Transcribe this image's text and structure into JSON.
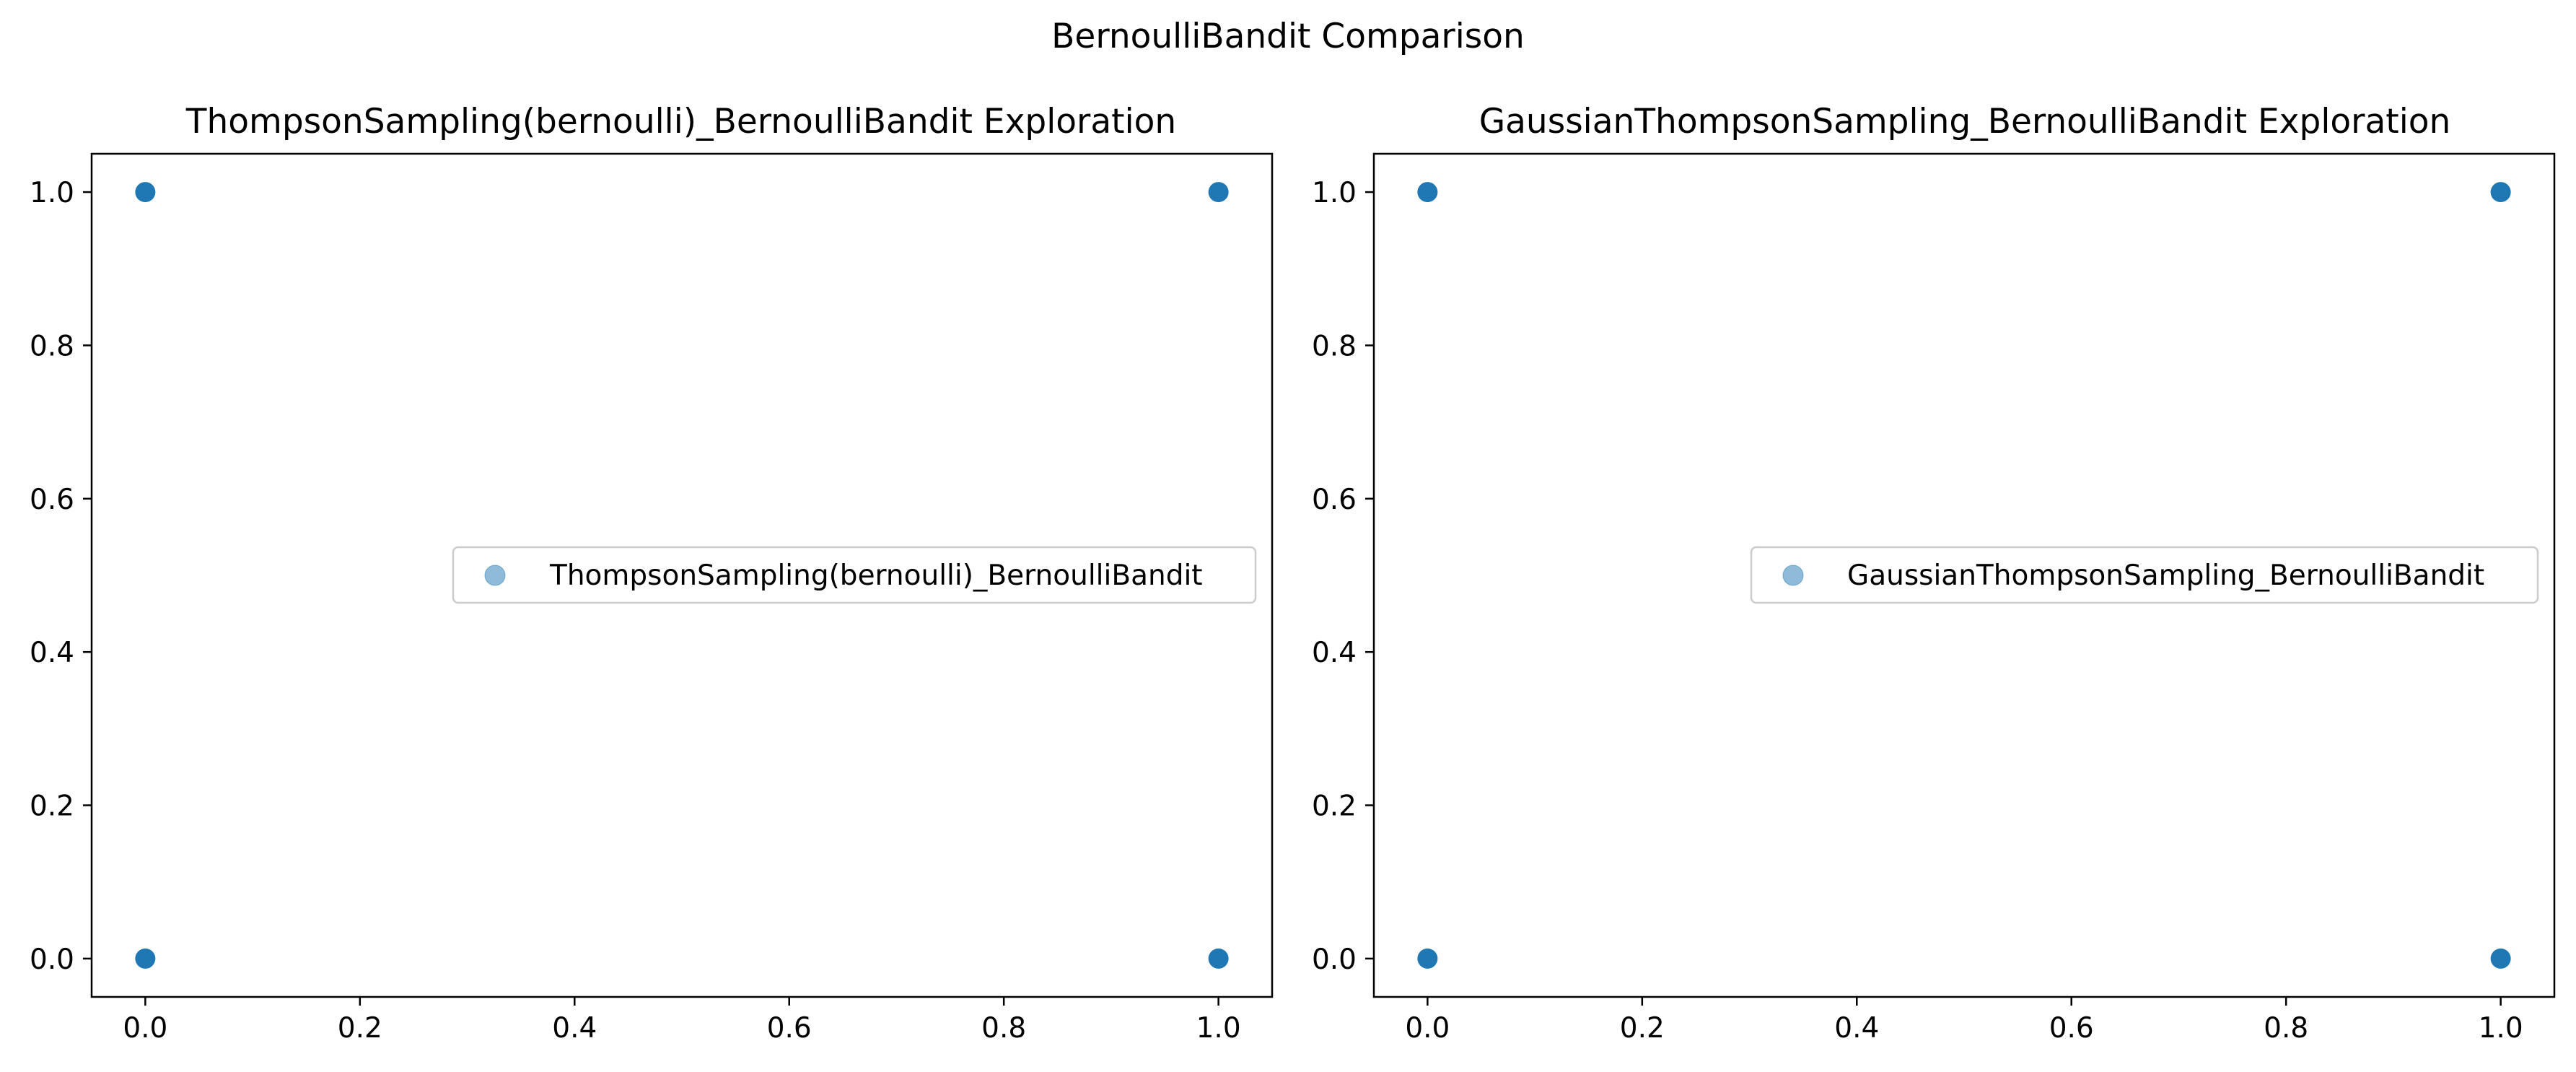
{
  "figure": {
    "suptitle": "BernoulliBandit Comparison"
  },
  "colors": {
    "point": "#1f77b4",
    "axis": "#000000",
    "legend_border": "#cccccc",
    "background": "#ffffff"
  },
  "chart_data": [
    {
      "type": "scatter",
      "title": "ThompsonSampling(bernoulli)_BernoulliBandit Exploration",
      "xlabel": "",
      "ylabel": "",
      "xlim": [
        -0.05,
        1.05
      ],
      "ylim": [
        -0.05,
        1.05
      ],
      "xticks": [
        0.0,
        0.2,
        0.4,
        0.6,
        0.8,
        1.0
      ],
      "xtick_labels": [
        "0.0",
        "0.2",
        "0.4",
        "0.6",
        "0.8",
        "1.0"
      ],
      "yticks": [
        0.0,
        0.2,
        0.4,
        0.6,
        0.8,
        1.0
      ],
      "ytick_labels": [
        "0.0",
        "0.2",
        "0.4",
        "0.6",
        "0.8",
        "1.0"
      ],
      "grid": false,
      "legend_position": "center-right",
      "series": [
        {
          "name": "ThompsonSampling(bernoulli)_BernoulliBandit",
          "x": [
            0,
            0,
            1,
            1
          ],
          "y": [
            1,
            0,
            1,
            0
          ],
          "alpha": 0.5
        }
      ]
    },
    {
      "type": "scatter",
      "title": "GaussianThompsonSampling_BernoulliBandit Exploration",
      "xlabel": "",
      "ylabel": "",
      "xlim": [
        -0.05,
        1.05
      ],
      "ylim": [
        -0.05,
        1.05
      ],
      "xticks": [
        0.0,
        0.2,
        0.4,
        0.6,
        0.8,
        1.0
      ],
      "xtick_labels": [
        "0.0",
        "0.2",
        "0.4",
        "0.6",
        "0.8",
        "1.0"
      ],
      "yticks": [
        0.0,
        0.2,
        0.4,
        0.6,
        0.8,
        1.0
      ],
      "ytick_labels": [
        "0.0",
        "0.2",
        "0.4",
        "0.6",
        "0.8",
        "1.0"
      ],
      "grid": false,
      "legend_position": "center-right",
      "series": [
        {
          "name": "GaussianThompsonSampling_BernoulliBandit",
          "x": [
            0,
            0,
            1,
            1
          ],
          "y": [
            1,
            0,
            1,
            0
          ],
          "alpha": 0.5
        }
      ]
    }
  ]
}
